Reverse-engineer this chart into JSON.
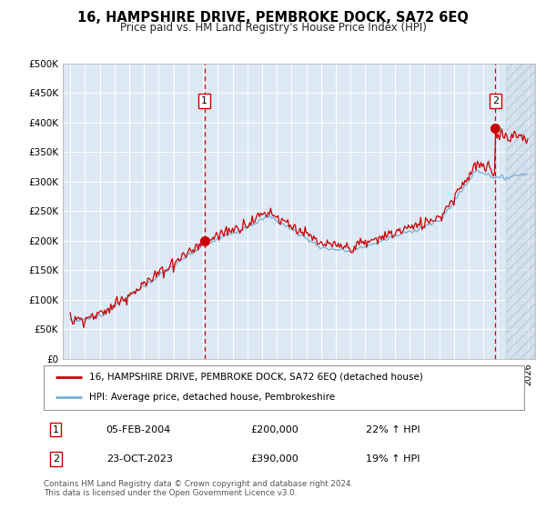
{
  "title": "16, HAMPSHIRE DRIVE, PEMBROKE DOCK, SA72 6EQ",
  "subtitle": "Price paid vs. HM Land Registry's House Price Index (HPI)",
  "legend_line1": "16, HAMPSHIRE DRIVE, PEMBROKE DOCK, SA72 6EQ (detached house)",
  "legend_line2": "HPI: Average price, detached house, Pembrokeshire",
  "footnote": "Contains HM Land Registry data © Crown copyright and database right 2024.\nThis data is licensed under the Open Government Licence v3.0.",
  "transaction1_date": "05-FEB-2004",
  "transaction1_price": "£200,000",
  "transaction1_hpi": "22% ↑ HPI",
  "transaction2_date": "23-OCT-2023",
  "transaction2_price": "£390,000",
  "transaction2_hpi": "19% ↑ HPI",
  "sale1_x": 2004.1,
  "sale1_y": 200000,
  "sale2_x": 2023.81,
  "sale2_y": 390000,
  "ylim": [
    0,
    500000
  ],
  "xlim": [
    1994.5,
    2026.5
  ],
  "hatch_start": 2024.5,
  "red_color": "#cc0000",
  "blue_color": "#7aafd4",
  "background_color": "#dce9f5",
  "grid_color": "#ffffff",
  "label_box_color": "#cc0000"
}
